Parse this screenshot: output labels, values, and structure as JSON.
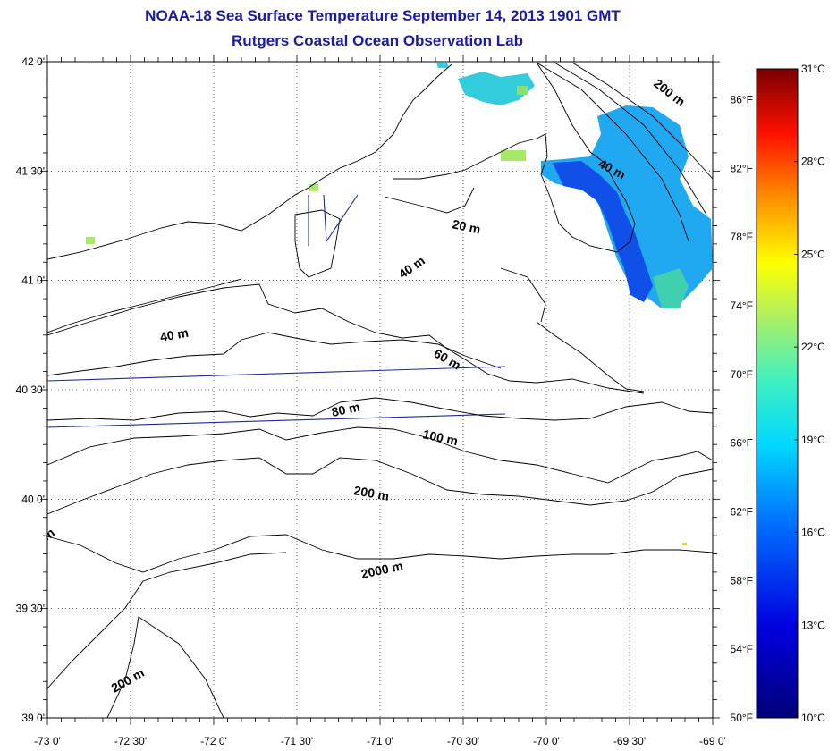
{
  "title": "NOAA-18 Sea Surface Temperature September 14, 2013 1901 GMT",
  "subtitle": "Rutgers Coastal Ocean Observation Lab",
  "map": {
    "lon_range": [
      -73,
      -69
    ],
    "lat_range": [
      39,
      42
    ],
    "lon_ticks": [
      "-73 0'",
      "-72 30'",
      "-72 0'",
      "-71 30'",
      "-71 0'",
      "-70 30'",
      "-70 0'",
      "-69 30'",
      "-69 0'"
    ],
    "lat_ticks": [
      "42 0'",
      "41 30'",
      "41 0'",
      "40 30'",
      "40 0'",
      "39 30'",
      "39 0'"
    ],
    "grid": true
  },
  "contours": [
    {
      "label": "200 m",
      "depth": 200
    },
    {
      "label": "40 m",
      "depth": 40
    },
    {
      "label": "20 m",
      "depth": 20
    },
    {
      "label": "40 m",
      "depth": 40
    },
    {
      "label": "40 m",
      "depth": 40
    },
    {
      "label": "60 m",
      "depth": 60
    },
    {
      "label": "80 m",
      "depth": 80
    },
    {
      "label": "100 m",
      "depth": 100
    },
    {
      "label": "200 m",
      "depth": 200
    },
    {
      "label": "2000 m",
      "depth": 2000
    },
    {
      "label": "200 m",
      "depth": 200
    },
    {
      "label": "m",
      "depth": null
    }
  ],
  "colorbar": {
    "celsius_labels": [
      "31°C",
      "28°C",
      "25°C",
      "22°C",
      "19°C",
      "16°C",
      "13°C",
      "10°C"
    ],
    "fahrenheit_labels": [
      "86°F",
      "82°F",
      "78°F",
      "74°F",
      "70°F",
      "66°F",
      "62°F",
      "58°F",
      "54°F",
      "50°F"
    ],
    "range_c": [
      10,
      31
    ],
    "colors": [
      "#000080",
      "#0000ff",
      "#0080ff",
      "#00ffff",
      "#80ff80",
      "#ffff00",
      "#ff8000",
      "#ff0000",
      "#800000"
    ]
  }
}
